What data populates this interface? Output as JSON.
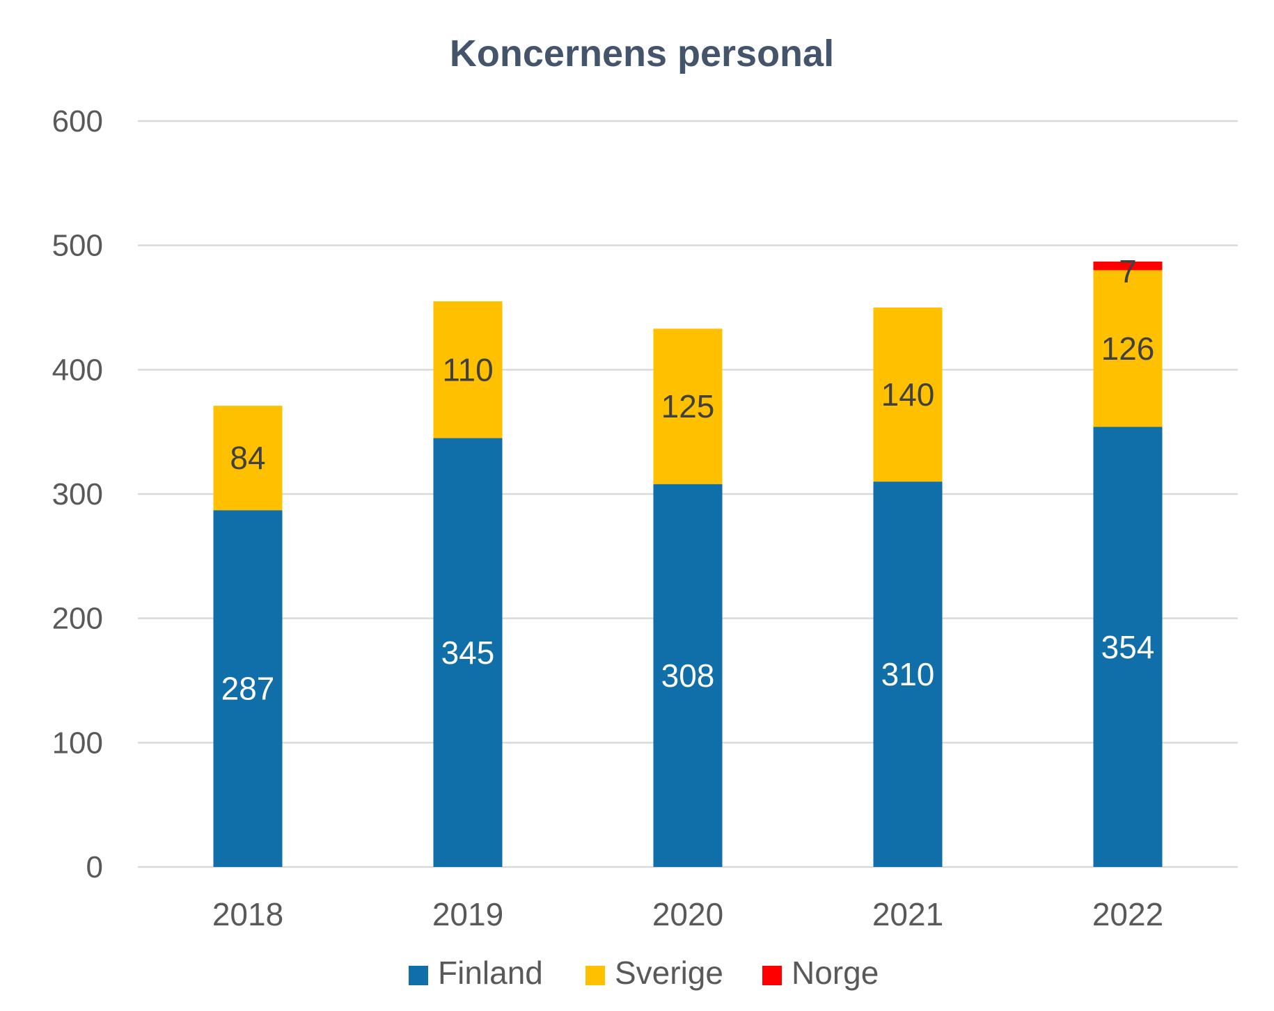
{
  "chart_data": {
    "type": "bar",
    "stacked": true,
    "title": "Koncernens personal",
    "xlabel": "",
    "ylabel": "",
    "categories": [
      "2018",
      "2019",
      "2020",
      "2021",
      "2022"
    ],
    "series": [
      {
        "name": "Finland",
        "color": "#106EA8",
        "label_color": "#FFFFFF",
        "values": [
          287,
          345,
          308,
          310,
          354
        ],
        "labels": [
          "287",
          "345",
          "308",
          "310",
          "354"
        ]
      },
      {
        "name": "Sverige",
        "color": "#FFC000",
        "label_color": "#404040",
        "values": [
          84,
          110,
          125,
          140,
          126
        ],
        "labels": [
          "84",
          "110",
          "125",
          "140",
          "126"
        ]
      },
      {
        "name": "Norge",
        "color": "#FF0000",
        "label_color": "#404040",
        "values": [
          null,
          null,
          null,
          null,
          7
        ],
        "labels": [
          "",
          "",
          "",
          "",
          "7"
        ]
      }
    ],
    "ylim": [
      0,
      600
    ],
    "yticks": [
      0,
      100,
      200,
      300,
      400,
      500,
      600
    ],
    "ytick_labels": [
      "0",
      "100",
      "200",
      "300",
      "400",
      "500",
      "600"
    ],
    "grid": true,
    "legend_position": "bottom"
  }
}
